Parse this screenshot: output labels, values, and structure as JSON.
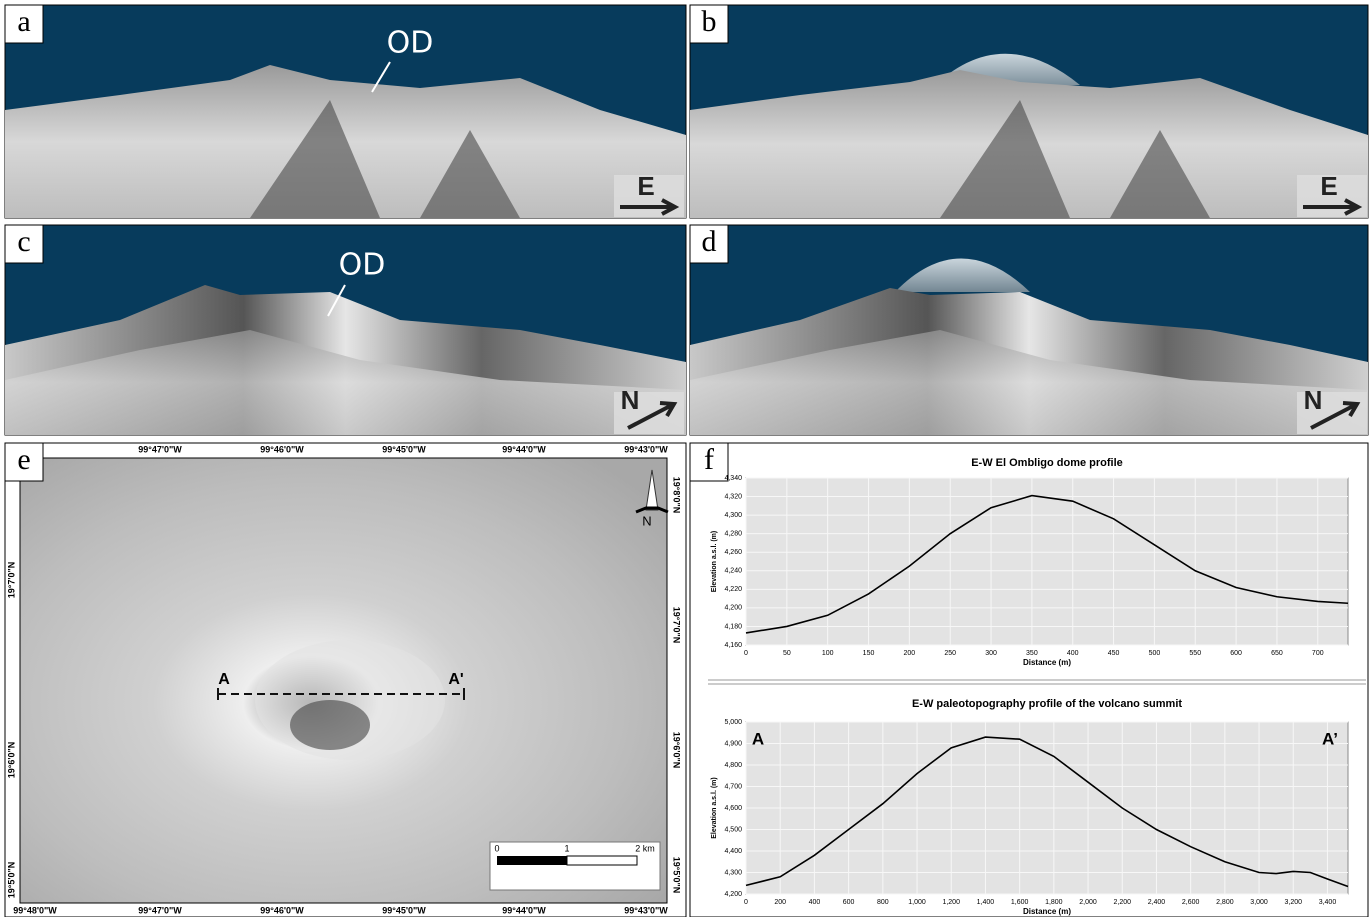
{
  "panels": {
    "a": "a",
    "b": "b",
    "c": "c",
    "d": "d",
    "e": "e",
    "f": "f",
    "od_a": "OD",
    "od_c": "OD",
    "dir_a": "E",
    "dir_b": "E",
    "dir_c": "N",
    "dir_d": "N"
  },
  "map": {
    "top_labels": [
      "99°47'0\"W",
      "99°46'0\"W",
      "99°45'0\"W",
      "99°44'0\"W",
      "99°43'0\"W"
    ],
    "bottom_labels": [
      "99°48'0\"W",
      "99°47'0\"W",
      "99°46'0\"W",
      "99°45'0\"W",
      "99°44'0\"W",
      "99°43'0\"W"
    ],
    "left_labels": [
      "19°7'0\"N",
      "19°6'0\"N",
      "19°5'0\"N"
    ],
    "right_labels": [
      "19°8'0\"N",
      "19°7'0\"N",
      "19°6'0\"N",
      "19°5'0\"N"
    ],
    "north": "N",
    "scale": [
      "0",
      "1",
      "2 km"
    ],
    "profile": [
      "A",
      "A'"
    ]
  },
  "chart_data": [
    {
      "type": "line",
      "title": "E-W El Ombligo dome profile",
      "x_label": "Distance (m)",
      "y_label": "Elevation a.s.l. (m)",
      "color": "#000000",
      "grid": true,
      "x": [
        0,
        50,
        100,
        150,
        200,
        250,
        300,
        350,
        400,
        450,
        500,
        550,
        600,
        650,
        700,
        737
      ],
      "values": [
        4173,
        4180,
        4192,
        4215,
        4245,
        4280,
        4308,
        4321,
        4315,
        4296,
        4268,
        4240,
        4222,
        4212,
        4207,
        4205
      ],
      "xlim": [
        0,
        737
      ],
      "ylim": [
        4160,
        4340
      ],
      "xticks": [
        0,
        50,
        100,
        150,
        200,
        250,
        300,
        350,
        400,
        450,
        500,
        550,
        600,
        650,
        700
      ],
      "yticks": [
        {
          "value": 4160,
          "label": "4,160"
        },
        {
          "value": 4180,
          "label": "4,180"
        },
        {
          "value": 4200,
          "label": "4,200"
        },
        {
          "value": 4220,
          "label": "4,220"
        },
        {
          "value": 4240,
          "label": "4,240"
        },
        {
          "value": 4260,
          "label": "4,260"
        },
        {
          "value": 4280,
          "label": "4,280"
        },
        {
          "value": 4300,
          "label": "4,300"
        },
        {
          "value": 4320,
          "label": "4,320"
        },
        {
          "value": 4340,
          "label": "4,340"
        }
      ]
    },
    {
      "type": "line",
      "title": "E-W paleotopography profile of the volcano summit",
      "x_label": "Distance (m)",
      "y_label": "Elevation a.s.l. (m)",
      "color": "#000000",
      "grid": true,
      "annotations": [
        "A",
        "A’"
      ],
      "x": [
        0,
        200,
        400,
        600,
        800,
        1000,
        1200,
        1400,
        1600,
        1800,
        2000,
        2200,
        2400,
        2600,
        2800,
        3000,
        3100,
        3200,
        3300,
        3400,
        3520
      ],
      "values": [
        4240,
        4280,
        4380,
        4500,
        4620,
        4760,
        4880,
        4930,
        4920,
        4840,
        4720,
        4600,
        4500,
        4420,
        4350,
        4300,
        4295,
        4305,
        4300,
        4270,
        4235
      ],
      "xlim": [
        0,
        3520
      ],
      "ylim": [
        4200,
        5000
      ],
      "xticks": [
        0,
        200,
        400,
        600,
        800,
        {
          "value": 1000,
          "label": "1,000"
        },
        {
          "value": 1200,
          "label": "1,200"
        },
        {
          "value": 1400,
          "label": "1,400"
        },
        {
          "value": 1600,
          "label": "1,600"
        },
        {
          "value": 1800,
          "label": "1,800"
        },
        {
          "value": 2000,
          "label": "2,000"
        },
        {
          "value": 2200,
          "label": "2,200"
        },
        {
          "value": 2400,
          "label": "2,400"
        },
        {
          "value": 2600,
          "label": "2,600"
        },
        {
          "value": 2800,
          "label": "2,800"
        },
        {
          "value": 3000,
          "label": "3,000"
        },
        {
          "value": 3200,
          "label": "3,200"
        },
        {
          "value": 3400,
          "label": "3,400"
        }
      ],
      "yticks": [
        {
          "value": 4200,
          "label": "4,200"
        },
        {
          "value": 4300,
          "label": "4,300"
        },
        {
          "value": 4400,
          "label": "4,400"
        },
        {
          "value": 4500,
          "label": "4,500"
        },
        {
          "value": 4600,
          "label": "4,600"
        },
        {
          "value": 4700,
          "label": "4,700"
        },
        {
          "value": 4800,
          "label": "4,800"
        },
        {
          "value": 4900,
          "label": "4,900"
        },
        {
          "value": 5000,
          "label": "5,000"
        }
      ]
    }
  ]
}
